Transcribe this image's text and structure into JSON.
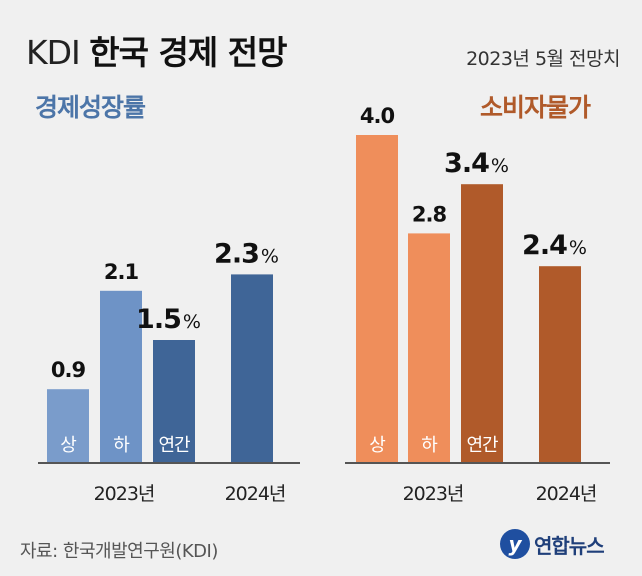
{
  "header": {
    "title_prefix": "KDI",
    "title_main": "한국 경제 전망",
    "date": "2023년 5월 전망치"
  },
  "footer": {
    "source": "자료: 한국개발연구원(KDI)",
    "logo_text": "연합뉴스"
  },
  "colors": {
    "growth_h1": "#7a9ccb",
    "growth_h2": "#6e93c6",
    "growth_annual": "#3f6597",
    "growth_2024": "#3f6597",
    "cpi_h1": "#ef8e5b",
    "cpi_h2": "#ef8e5b",
    "cpi_annual": "#b05a2a",
    "cpi_2024": "#b05a2a",
    "axis": "#555555"
  },
  "chart_data": [
    {
      "type": "bar",
      "title": "경제성장률",
      "unit": "%",
      "ylim": [
        0,
        4.2
      ],
      "groups": [
        "2023년",
        "2024년"
      ],
      "bars": [
        {
          "group": "2023년",
          "label": "상",
          "value": 0.9,
          "value_text": "0.9",
          "color_key": "growth_h1",
          "emphasis": false
        },
        {
          "group": "2023년",
          "label": "하",
          "value": 2.1,
          "value_text": "2.1",
          "color_key": "growth_h2",
          "emphasis": false
        },
        {
          "group": "2023년",
          "label": "연간",
          "value": 1.5,
          "value_text": "1.5",
          "color_key": "growth_annual",
          "emphasis": true
        },
        {
          "group": "2024년",
          "label": "",
          "value": 2.3,
          "value_text": "2.3",
          "color_key": "growth_2024",
          "emphasis": true
        }
      ]
    },
    {
      "type": "bar",
      "title": "소비자물가",
      "unit": "%",
      "ylim": [
        0,
        4.2
      ],
      "groups": [
        "2023년",
        "2024년"
      ],
      "bars": [
        {
          "group": "2023년",
          "label": "상",
          "value": 4.0,
          "value_text": "4.0",
          "color_key": "cpi_h1",
          "emphasis": false
        },
        {
          "group": "2023년",
          "label": "하",
          "value": 2.8,
          "value_text": "2.8",
          "color_key": "cpi_h2",
          "emphasis": false
        },
        {
          "group": "2023년",
          "label": "연간",
          "value": 3.4,
          "value_text": "3.4",
          "color_key": "cpi_annual",
          "emphasis": true
        },
        {
          "group": "2024년",
          "label": "",
          "value": 2.4,
          "value_text": "2.4",
          "color_key": "cpi_2024",
          "emphasis": true
        }
      ]
    }
  ]
}
